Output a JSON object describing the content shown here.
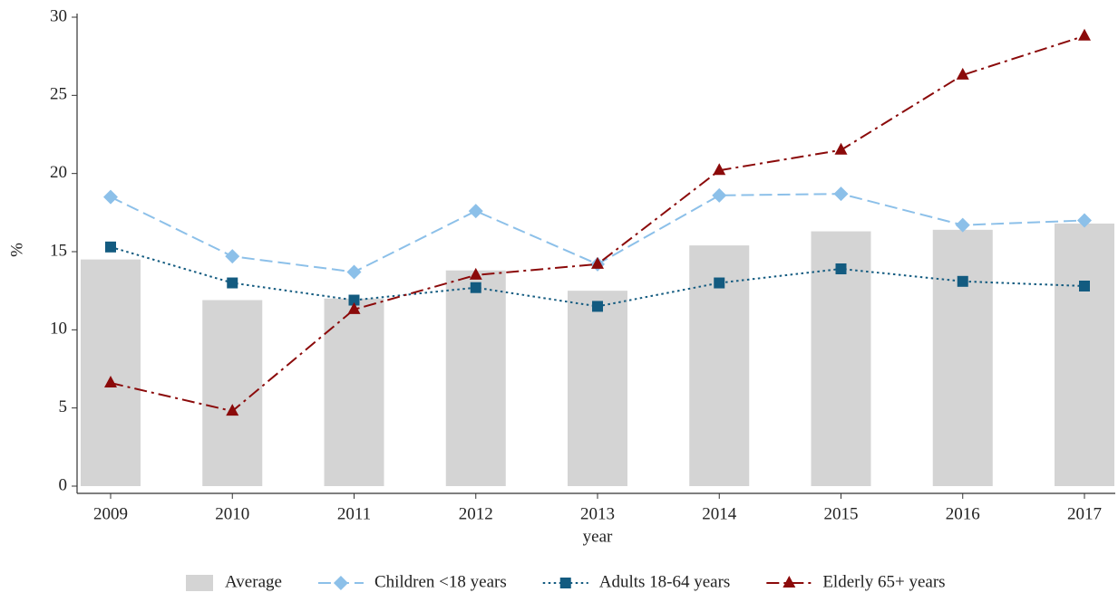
{
  "chart_data": {
    "type": "bar",
    "x_label": "year",
    "y_label": "%",
    "categories": [
      "2009",
      "2010",
      "2011",
      "2012",
      "2013",
      "2014",
      "2015",
      "2016",
      "2017"
    ],
    "series": [
      {
        "name": "Average",
        "type": "bar",
        "color": "#d4d4d4",
        "values": [
          14.5,
          11.9,
          12.0,
          13.8,
          12.5,
          15.4,
          16.3,
          16.4,
          16.8
        ]
      },
      {
        "name": "Children <18 years",
        "type": "line",
        "color": "#8cc0e9",
        "line_style": "dashed",
        "marker": "diamond",
        "values": [
          18.5,
          14.7,
          13.7,
          17.6,
          14.2,
          18.6,
          18.7,
          16.7,
          17.0
        ]
      },
      {
        "name": "Adults 18-64 years",
        "type": "line",
        "color": "#135b80",
        "line_style": "dotted",
        "marker": "square",
        "values": [
          15.3,
          13.0,
          11.9,
          12.7,
          11.5,
          13.0,
          13.9,
          13.1,
          12.8
        ]
      },
      {
        "name": "Elderly 65+ years",
        "type": "line",
        "color": "#8b0a0a",
        "line_style": "dashdot",
        "marker": "triangle",
        "values": [
          6.6,
          4.8,
          11.3,
          13.5,
          14.2,
          20.2,
          21.5,
          26.3,
          28.8
        ]
      }
    ],
    "ylim": [
      0,
      30
    ],
    "yticks": [
      0,
      5,
      10,
      15,
      20,
      25,
      30
    ],
    "grid": false,
    "legend": "bottom"
  }
}
